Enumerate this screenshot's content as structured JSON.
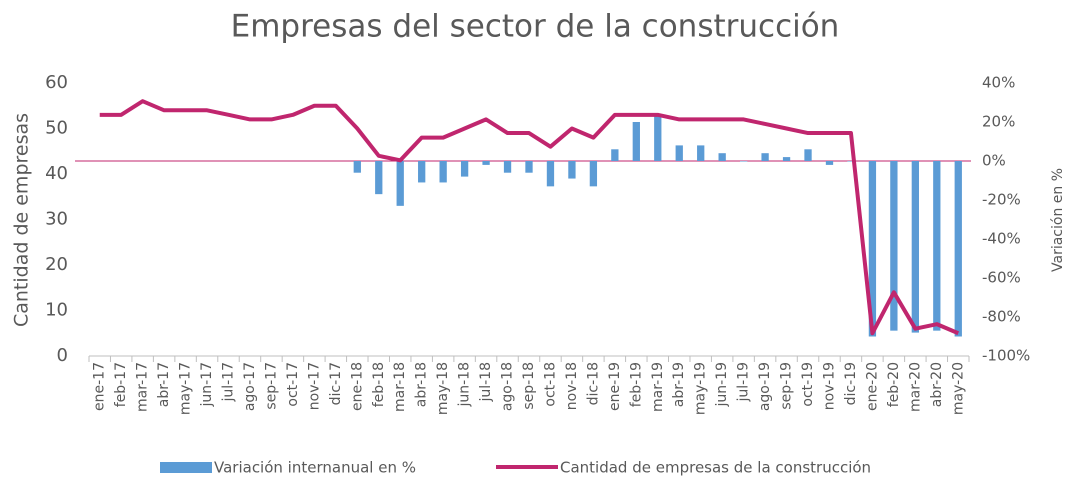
{
  "chart_data": {
    "type": "bar-line",
    "title": "Empresas del sector de la construcción",
    "y_label": "Cantidad de empresas",
    "y2_label": "Variación en %",
    "categories": [
      "ene-17",
      "feb-17",
      "mar-17",
      "abr-17",
      "may-17",
      "jun-17",
      "jul-17",
      "ago-17",
      "sep-17",
      "oct-17",
      "nov-17",
      "dic-17",
      "ene-18",
      "feb-18",
      "mar-18",
      "abr-18",
      "may-18",
      "jun-18",
      "jul-18",
      "ago-18",
      "sep-18",
      "oct-18",
      "nov-18",
      "dic-18",
      "ene-19",
      "feb-19",
      "mar-19",
      "abr-19",
      "may-19",
      "jun-19",
      "jul-19",
      "ago-19",
      "sep-19",
      "oct-19",
      "nov-19",
      "dic-19",
      "ene-20",
      "feb-20",
      "mar-20",
      "abr-20",
      "may-20"
    ],
    "series": [
      {
        "name": "Variación internanual en %",
        "type": "bar",
        "axis": "y2",
        "color": "#5b9bd5",
        "values": [
          null,
          null,
          null,
          null,
          null,
          null,
          null,
          null,
          null,
          null,
          null,
          null,
          -6,
          -17,
          -23,
          -11,
          -11,
          -8,
          -2,
          -6,
          -6,
          -13,
          -9,
          -13,
          6,
          20,
          23,
          8,
          8,
          4,
          0,
          4,
          2,
          6,
          -2,
          0,
          -90,
          -87,
          -88,
          -87,
          -90
        ]
      },
      {
        "name": "Cantidad de empresas de la construcción",
        "type": "line",
        "axis": "y",
        "color": "#c0266e",
        "values": [
          53,
          53,
          56,
          54,
          54,
          54,
          53,
          52,
          52,
          53,
          55,
          55,
          50,
          44,
          43,
          48,
          48,
          50,
          52,
          49,
          49,
          46,
          50,
          48,
          53,
          53,
          53,
          52,
          52,
          52,
          52,
          51,
          50,
          49,
          49,
          49,
          5,
          14,
          6,
          7,
          5
        ]
      }
    ],
    "ylim": [
      0,
      60
    ],
    "yticks": [
      0,
      10,
      20,
      30,
      40,
      50,
      60
    ],
    "y2lim": [
      -100,
      40
    ],
    "y2ticks": [
      {
        "value": -100,
        "label": "-100%"
      },
      {
        "value": -80,
        "label": "-80%"
      },
      {
        "value": -60,
        "label": "-60%"
      },
      {
        "value": -40,
        "label": "-40%"
      },
      {
        "value": -20,
        "label": "-20%"
      },
      {
        "value": 0,
        "label": "0%"
      },
      {
        "value": 20,
        "label": "20%"
      },
      {
        "value": 40,
        "label": "40%"
      }
    ]
  }
}
